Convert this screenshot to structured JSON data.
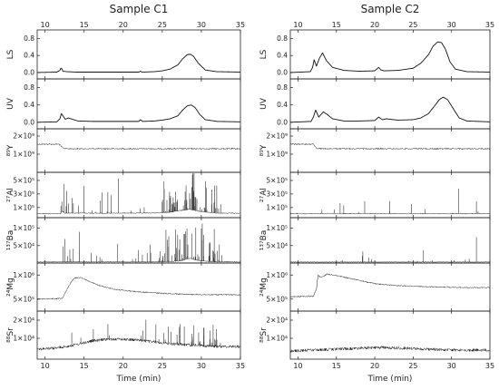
{
  "chart_data": [
    {
      "type": "line",
      "title": "Sample C1",
      "xlabel": "Time (min)",
      "xlim": [
        9,
        35
      ],
      "x_ticks": [
        10,
        15,
        20,
        25,
        30,
        35
      ],
      "panels": [
        {
          "key": "LS",
          "ylabel": "LS",
          "ylim": [
            -0.15,
            1.0
          ],
          "y_ticks": [
            "0.0",
            "0.4",
            "0.8"
          ],
          "y_tick_values": [
            0,
            0.4,
            0.8
          ],
          "x": [
            9,
            11.5,
            11.9,
            12.05,
            12.3,
            12.8,
            14,
            18,
            22,
            22.2,
            22.4,
            24,
            25,
            26,
            27,
            27.6,
            28.2,
            28.6,
            29,
            29.6,
            30.5,
            32,
            35
          ],
          "y": [
            0,
            0.01,
            0.05,
            0.12,
            0.03,
            0.02,
            0.01,
            0.01,
            0.01,
            0.03,
            0.01,
            0.02,
            0.04,
            0.08,
            0.18,
            0.32,
            0.42,
            0.43,
            0.38,
            0.22,
            0.06,
            0.02,
            0.01
          ]
        },
        {
          "key": "UV",
          "ylabel": "UV",
          "ylim": [
            -0.15,
            1.0
          ],
          "y_ticks": [
            "0.0",
            "0.4",
            "0.8"
          ],
          "y_tick_values": [
            0,
            0.4,
            0.8
          ],
          "x": [
            9,
            11.5,
            11.9,
            12.1,
            12.6,
            13.0,
            13.5,
            14.2,
            16,
            20,
            22,
            22.2,
            22.5,
            24,
            25,
            26,
            27,
            27.6,
            28.2,
            28.7,
            29.2,
            29.8,
            30.5,
            32,
            35
          ],
          "y": [
            0,
            0.01,
            0.08,
            0.2,
            0.07,
            0.1,
            0.07,
            0.03,
            0.02,
            0.02,
            0.02,
            0.06,
            0.02,
            0.03,
            0.05,
            0.08,
            0.15,
            0.28,
            0.38,
            0.4,
            0.34,
            0.18,
            0.06,
            0.02,
            0.01
          ]
        },
        {
          "key": "Y",
          "ylabel": "⁸⁹Y",
          "ylim": [
            0,
            2400000000
          ],
          "y_ticks": [
            "1×10⁹",
            "2×10⁹"
          ],
          "y_tick_values": [
            1000000000,
            2000000000
          ],
          "x": [
            9,
            11.8,
            12.3,
            13,
            35
          ],
          "y": [
            1550000000,
            1550000000,
            1330000000,
            1300000000,
            1300000000
          ]
        },
        {
          "key": "Al",
          "ylabel": "²⁷Al",
          "ylim": [
            -50000,
            620000
          ],
          "y_ticks": [
            "1×10⁵",
            "3×10⁵",
            "5×10⁵"
          ],
          "y_tick_values": [
            100000,
            300000,
            500000
          ],
          "x": [
            9,
            12,
            12.2,
            12.5,
            18,
            24,
            26,
            27,
            28.5,
            30,
            32,
            35
          ],
          "y": [
            10000,
            10000,
            50000,
            20000,
            15000,
            20000,
            30000,
            50000,
            75000,
            40000,
            18000,
            15000
          ]
        },
        {
          "key": "Ba",
          "ylabel": "¹³⁷Ba",
          "ylim": [
            0,
            130000
          ],
          "y_ticks": [
            "5×10⁴",
            "1×10⁵"
          ],
          "y_tick_values": [
            50000,
            100000
          ],
          "x": [
            9,
            12,
            18,
            24,
            26,
            27.5,
            28.5,
            29.5,
            31,
            35
          ],
          "y": [
            3000,
            3000,
            3000,
            3000,
            4000,
            7000,
            14000,
            8000,
            4000,
            3000
          ]
        },
        {
          "key": "Mg",
          "ylabel": "²⁴Mg",
          "ylim": [
            250000,
            1250000
          ],
          "y_ticks": [
            "5×10⁵",
            "1×10⁶"
          ],
          "y_tick_values": [
            500000,
            1000000
          ],
          "x": [
            9,
            11.5,
            12.2,
            12.8,
            13.3,
            13.8,
            14.5,
            15.5,
            17,
            19,
            22,
            25,
            28,
            31,
            35
          ],
          "y": [
            500000,
            510000,
            520000,
            700000,
            850000,
            940000,
            950000,
            880000,
            780000,
            700000,
            650000,
            620000,
            600000,
            590000,
            590000
          ]
        },
        {
          "key": "Sr",
          "ylabel": "⁸⁸Sr",
          "ylim": [
            -1500,
            25000
          ],
          "y_ticks": [
            "1×10⁴",
            "2×10⁴"
          ],
          "y_tick_values": [
            10000,
            20000
          ],
          "x": [
            9,
            11,
            12,
            14,
            16,
            18,
            20,
            22,
            24,
            26,
            28,
            30,
            32,
            35
          ],
          "y": [
            4000,
            4500,
            5000,
            6500,
            8500,
            9500,
            9500,
            9000,
            8000,
            7000,
            6500,
            6000,
            5500,
            5500
          ]
        }
      ]
    },
    {
      "type": "line",
      "title": "Sample C2",
      "xlabel": "Time (min)",
      "xlim": [
        9,
        35
      ],
      "x_ticks": [
        10,
        15,
        20,
        25,
        30,
        35
      ],
      "panels": [
        {
          "key": "LS",
          "ylabel": "LS",
          "ylim": [
            -0.15,
            1.0
          ],
          "y_ticks": [
            "0.0",
            "0.4",
            "0.8"
          ],
          "y_tick_values": [
            0,
            0.4,
            0.8
          ],
          "x": [
            9,
            11.6,
            11.9,
            12.1,
            12.4,
            12.8,
            13.2,
            13.7,
            14.5,
            16,
            18,
            20,
            20.5,
            20.8,
            21.2,
            23,
            25,
            26,
            27,
            27.6,
            28.2,
            28.7,
            29.2,
            29.8,
            30.5,
            32,
            35
          ],
          "y": [
            0,
            0.02,
            0.12,
            0.3,
            0.15,
            0.34,
            0.46,
            0.28,
            0.12,
            0.05,
            0.03,
            0.04,
            0.12,
            0.06,
            0.04,
            0.05,
            0.1,
            0.22,
            0.42,
            0.62,
            0.72,
            0.7,
            0.55,
            0.25,
            0.08,
            0.02,
            0.01
          ]
        },
        {
          "key": "UV",
          "ylabel": "UV",
          "ylim": [
            -0.15,
            1.0
          ],
          "y_ticks": [
            "0.0",
            "0.4",
            "0.8"
          ],
          "y_tick_values": [
            0,
            0.4,
            0.8
          ],
          "x": [
            9,
            11.7,
            12.0,
            12.3,
            12.7,
            13.3,
            13.8,
            14.5,
            16,
            18,
            20,
            20.5,
            21,
            21.5,
            23,
            25,
            26,
            27,
            27.8,
            28.4,
            28.9,
            29.5,
            30.2,
            31,
            32,
            35
          ],
          "y": [
            0,
            0.02,
            0.12,
            0.28,
            0.12,
            0.24,
            0.18,
            0.08,
            0.03,
            0.03,
            0.04,
            0.12,
            0.06,
            0.08,
            0.05,
            0.06,
            0.1,
            0.2,
            0.38,
            0.52,
            0.58,
            0.52,
            0.32,
            0.1,
            0.03,
            0.01
          ]
        },
        {
          "key": "Y",
          "ylabel": "⁸⁹Y",
          "ylim": [
            0,
            2400000000
          ],
          "y_ticks": [
            "1×10⁹",
            "2×10⁹"
          ],
          "y_tick_values": [
            1000000000,
            2000000000
          ],
          "x": [
            9,
            12.0,
            12.4,
            13,
            35
          ],
          "y": [
            1550000000,
            1550000000,
            1330000000,
            1300000000,
            1300000000
          ]
        },
        {
          "key": "Al",
          "ylabel": "²⁷Al",
          "ylim": [
            -50000,
            620000
          ],
          "y_ticks": [
            "1×10⁵",
            "3×10⁵",
            "5×10⁵"
          ],
          "y_tick_values": [
            100000,
            300000,
            500000
          ],
          "x": [
            9,
            35
          ],
          "y": [
            10000,
            10000
          ]
        },
        {
          "key": "Ba",
          "ylabel": "¹³⁷Ba",
          "ylim": [
            0,
            130000
          ],
          "y_ticks": [
            "5×10⁴",
            "1×10⁵"
          ],
          "y_tick_values": [
            50000,
            100000
          ],
          "x": [
            9,
            35
          ],
          "y": [
            2500,
            2500
          ]
        },
        {
          "key": "Mg",
          "ylabel": "²⁴Mg",
          "ylim": [
            250000,
            1250000
          ],
          "y_ticks": [
            "5×10⁵",
            "1×10⁶"
          ],
          "y_tick_values": [
            500000,
            1000000
          ],
          "x": [
            9,
            12.0,
            12.4,
            12.6,
            13.0,
            13.8,
            15,
            17,
            20,
            23,
            26,
            29,
            32,
            35
          ],
          "y": [
            550000,
            560000,
            700000,
            1000000,
            950000,
            1020000,
            990000,
            920000,
            820000,
            780000,
            760000,
            750000,
            740000,
            740000
          ]
        },
        {
          "key": "Sr",
          "ylabel": "⁸⁸Sr",
          "ylim": [
            -1500,
            25000
          ],
          "y_ticks": [
            "1×10⁴",
            "2×10⁴"
          ],
          "y_tick_values": [
            10000,
            20000
          ],
          "x": [
            9,
            12,
            15,
            18,
            21,
            24,
            27,
            30,
            35
          ],
          "y": [
            3000,
            3500,
            4000,
            4500,
            5000,
            4500,
            4000,
            3500,
            3500
          ]
        }
      ]
    }
  ]
}
